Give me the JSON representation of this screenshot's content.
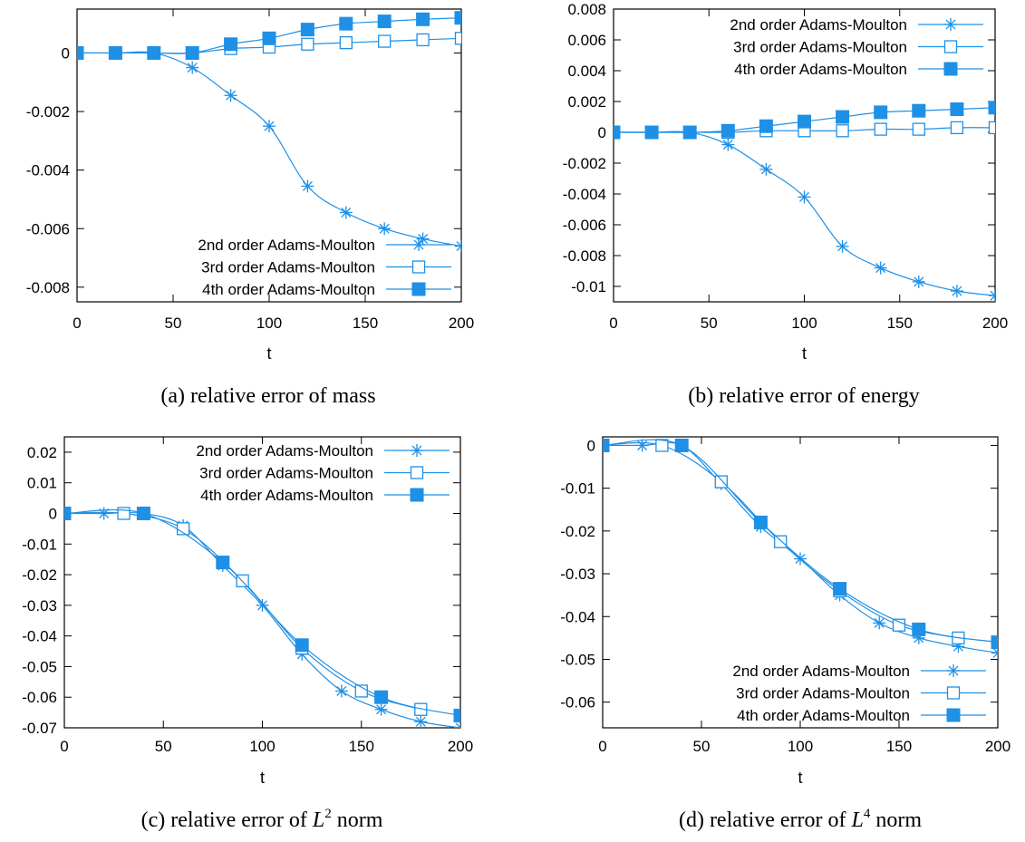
{
  "chart_data": [
    {
      "type": "line",
      "caption": "(a) relative error of mass",
      "caption_label": "(a)",
      "caption_text": "relative error of mass",
      "xlabel": "t",
      "ylabel": "",
      "xlim": [
        0,
        200
      ],
      "ylim": [
        -0.0085,
        0.0015
      ],
      "xticks": [
        0,
        50,
        100,
        150,
        200
      ],
      "xtick_labels": [
        "0",
        "50",
        "100",
        "150",
        "200"
      ],
      "yticks": [
        0,
        -0.002,
        -0.004,
        -0.006,
        -0.008
      ],
      "ytick_labels": [
        "0",
        "-0.002",
        "-0.004",
        "-0.006",
        "-0.008"
      ],
      "legend_position": "bottom-right",
      "color": "#1e90e6",
      "series": [
        {
          "name": "2nd order Adams-Moulton",
          "marker": "star",
          "x": [
            0,
            20,
            40,
            60,
            80,
            100,
            120,
            140,
            160,
            180,
            200
          ],
          "y": [
            0,
            0,
            0,
            -0.0005,
            -0.00145,
            -0.0025,
            -0.00455,
            -0.00545,
            -0.006,
            -0.00635,
            -0.0066
          ]
        },
        {
          "name": "3rd order Adams-Moulton",
          "marker": "open-square",
          "x": [
            0,
            20,
            40,
            60,
            80,
            100,
            120,
            140,
            160,
            180,
            200
          ],
          "y": [
            0,
            0,
            0,
            0,
            0.00015,
            0.0002,
            0.0003,
            0.00035,
            0.0004,
            0.00045,
            0.0005
          ]
        },
        {
          "name": "4th order Adams-Moulton",
          "marker": "filled-square",
          "x": [
            0,
            20,
            40,
            60,
            80,
            100,
            120,
            140,
            160,
            180,
            200
          ],
          "y": [
            0,
            0,
            0,
            0,
            0.0003,
            0.0005,
            0.0008,
            0.001,
            0.00108,
            0.00115,
            0.0012
          ]
        }
      ]
    },
    {
      "type": "line",
      "caption": "(b) relative error of energy",
      "caption_label": "(b)",
      "caption_text": "relative error of energy",
      "xlabel": "t",
      "ylabel": "",
      "xlim": [
        0,
        200
      ],
      "ylim": [
        -0.011,
        0.008
      ],
      "xticks": [
        0,
        50,
        100,
        150,
        200
      ],
      "xtick_labels": [
        "0",
        "50",
        "100",
        "150",
        "200"
      ],
      "yticks": [
        0.008,
        0.006,
        0.004,
        0.002,
        0,
        -0.002,
        -0.004,
        -0.006,
        -0.008,
        -0.01
      ],
      "ytick_labels": [
        "0.008",
        "0.006",
        "0.004",
        "0.002",
        "0",
        "-0.002",
        "-0.004",
        "-0.006",
        "-0.008",
        "-0.01"
      ],
      "legend_position": "top-right",
      "color": "#1e90e6",
      "series": [
        {
          "name": "2nd order Adams-Moulton",
          "marker": "star",
          "x": [
            0,
            20,
            40,
            60,
            80,
            100,
            120,
            140,
            160,
            180,
            200
          ],
          "y": [
            0,
            0,
            0,
            -0.0008,
            -0.0024,
            -0.0042,
            -0.0074,
            -0.0088,
            -0.0097,
            -0.0103,
            -0.0106
          ]
        },
        {
          "name": "3rd order Adams-Moulton",
          "marker": "open-square",
          "x": [
            0,
            20,
            40,
            60,
            80,
            100,
            120,
            140,
            160,
            180,
            200
          ],
          "y": [
            0,
            0,
            0,
            0,
            0.0001,
            0.0001,
            0.0001,
            0.0002,
            0.0002,
            0.0003,
            0.0003
          ]
        },
        {
          "name": "4th order Adams-Moulton",
          "marker": "filled-square",
          "x": [
            0,
            20,
            40,
            60,
            80,
            100,
            120,
            140,
            160,
            180,
            200
          ],
          "y": [
            0,
            0,
            0,
            0.0001,
            0.0004,
            0.0007,
            0.001,
            0.0013,
            0.0014,
            0.0015,
            0.0016
          ]
        }
      ]
    },
    {
      "type": "line",
      "caption": "(c) relative error of L2 norm",
      "caption_label": "(c)",
      "caption_text": "relative error of",
      "caption_math": "L",
      "caption_sup": "2",
      "caption_tail": "norm",
      "xlabel": "t",
      "ylabel": "",
      "xlim": [
        0,
        200
      ],
      "ylim": [
        -0.07,
        0.025
      ],
      "xticks": [
        0,
        50,
        100,
        150,
        200
      ],
      "xtick_labels": [
        "0",
        "50",
        "100",
        "150",
        "200"
      ],
      "yticks": [
        0.02,
        0.01,
        0,
        -0.01,
        -0.02,
        -0.03,
        -0.04,
        -0.05,
        -0.06,
        -0.07
      ],
      "ytick_labels": [
        "0.02",
        "0.01",
        "0",
        "-0.01",
        "-0.02",
        "-0.03",
        "-0.04",
        "-0.05",
        "-0.06",
        "-0.07"
      ],
      "legend_position": "top-right",
      "color": "#1e90e6",
      "series": [
        {
          "name": "2nd order Adams-Moulton",
          "marker": "star",
          "x": [
            0,
            20,
            40,
            60,
            80,
            100,
            120,
            140,
            160,
            180,
            200
          ],
          "y": [
            0,
            0,
            0,
            -0.004,
            -0.017,
            -0.03,
            -0.046,
            -0.058,
            -0.064,
            -0.068,
            -0.07
          ]
        },
        {
          "name": "3rd order Adams-Moulton",
          "marker": "open-square",
          "x": [
            0,
            30,
            60,
            90,
            120,
            150,
            180
          ],
          "y": [
            0,
            0,
            -0.005,
            -0.022,
            -0.044,
            -0.058,
            -0.064
          ]
        },
        {
          "name": "4th order Adams-Moulton",
          "marker": "filled-square",
          "x": [
            0,
            40,
            80,
            120,
            160,
            200
          ],
          "y": [
            0,
            0,
            -0.016,
            -0.043,
            -0.06,
            -0.066
          ]
        }
      ]
    },
    {
      "type": "line",
      "caption": "(d) relative error of L4 norm",
      "caption_label": "(d)",
      "caption_text": "relative error of",
      "caption_math": "L",
      "caption_sup": "4",
      "caption_tail": "norm",
      "xlabel": "t",
      "ylabel": "",
      "xlim": [
        0,
        200
      ],
      "ylim": [
        -0.066,
        0.002
      ],
      "xticks": [
        0,
        50,
        100,
        150,
        200
      ],
      "xtick_labels": [
        "0",
        "50",
        "100",
        "150",
        "200"
      ],
      "yticks": [
        0,
        -0.01,
        -0.02,
        -0.03,
        -0.04,
        -0.05,
        -0.06
      ],
      "ytick_labels": [
        "0",
        "-0.01",
        "-0.02",
        "-0.03",
        "-0.04",
        "-0.05",
        "-0.06"
      ],
      "legend_position": "bottom-right",
      "color": "#1e90e6",
      "series": [
        {
          "name": "2nd order Adams-Moulton",
          "marker": "star",
          "x": [
            0,
            20,
            40,
            60,
            80,
            100,
            120,
            140,
            160,
            180,
            200
          ],
          "y": [
            0,
            0,
            0,
            -0.009,
            -0.019,
            -0.0265,
            -0.035,
            -0.0415,
            -0.045,
            -0.047,
            -0.0485
          ]
        },
        {
          "name": "3rd order Adams-Moulton",
          "marker": "open-square",
          "x": [
            0,
            30,
            60,
            90,
            120,
            150,
            180
          ],
          "y": [
            0,
            0,
            -0.0085,
            -0.0225,
            -0.034,
            -0.042,
            -0.045
          ]
        },
        {
          "name": "4th order Adams-Moulton",
          "marker": "filled-square",
          "x": [
            0,
            40,
            80,
            120,
            160,
            200
          ],
          "y": [
            0,
            0,
            -0.018,
            -0.0335,
            -0.043,
            -0.046
          ]
        }
      ]
    }
  ]
}
